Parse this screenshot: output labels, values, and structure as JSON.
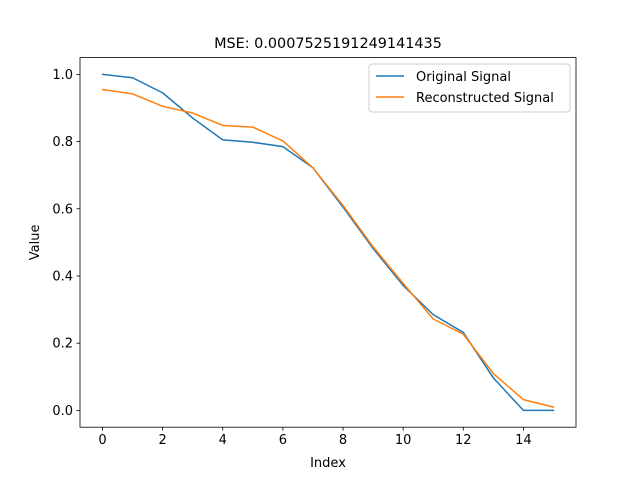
{
  "chart_data": {
    "type": "line",
    "title": "MSE: 0.0007525191249141435",
    "xlabel": "Index",
    "ylabel": "Value",
    "xlim": [
      -0.75,
      15.75
    ],
    "ylim": [
      -0.05,
      1.05
    ],
    "xticks": [
      0,
      2,
      4,
      6,
      8,
      10,
      12,
      14
    ],
    "xtick_labels": [
      "0",
      "2",
      "4",
      "6",
      "8",
      "10",
      "12",
      "14"
    ],
    "yticks": [
      0.0,
      0.2,
      0.4,
      0.6,
      0.8,
      1.0
    ],
    "ytick_labels": [
      "0.0",
      "0.2",
      "0.4",
      "0.6",
      "0.8",
      "1.0"
    ],
    "grid": false,
    "legend_position": "top-right",
    "x": [
      0,
      1,
      2,
      3,
      4,
      5,
      6,
      7,
      8,
      9,
      10,
      11,
      12,
      13,
      14,
      15
    ],
    "series": [
      {
        "name": "Original Signal",
        "color": "#1f77b4",
        "values": [
          1.0,
          0.99,
          0.945,
          0.87,
          0.805,
          0.798,
          0.785,
          0.722,
          0.605,
          0.482,
          0.372,
          0.285,
          0.232,
          0.097,
          0.0,
          0.0
        ]
      },
      {
        "name": "Reconstructed Signal",
        "color": "#ff7f0e",
        "values": [
          0.955,
          0.942,
          0.905,
          0.885,
          0.848,
          0.843,
          0.802,
          0.722,
          0.61,
          0.487,
          0.378,
          0.272,
          0.227,
          0.11,
          0.032,
          0.01
        ]
      }
    ]
  }
}
